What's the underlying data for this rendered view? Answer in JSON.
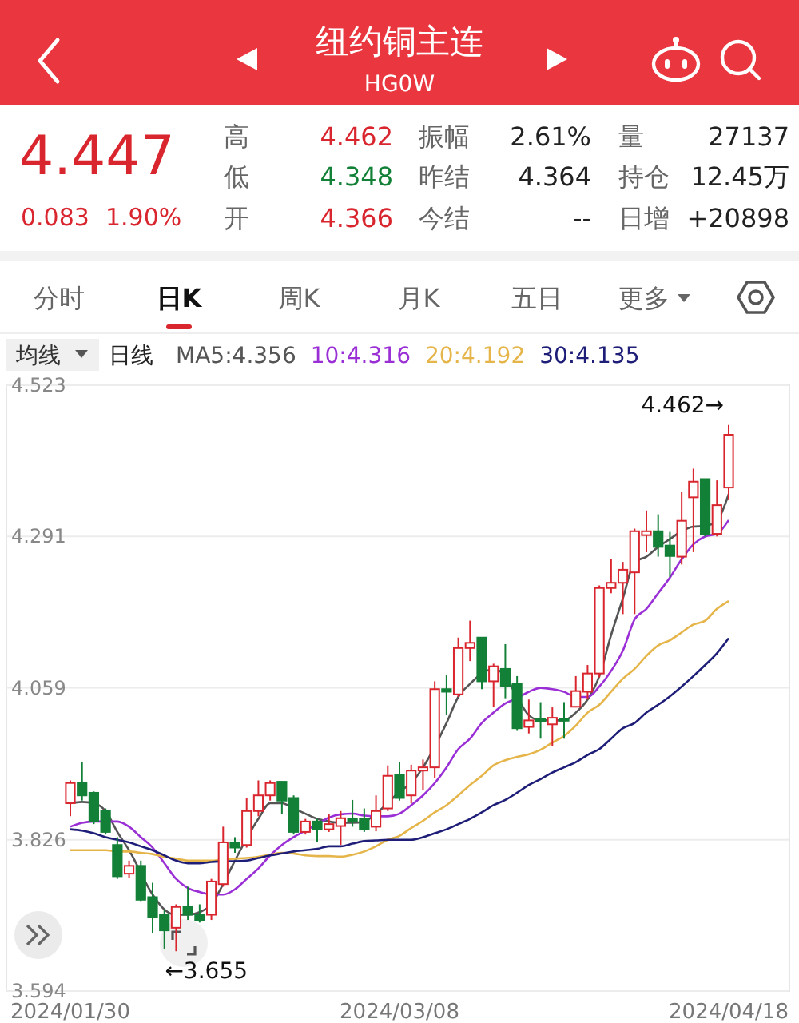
{
  "chart_data": {
    "type": "candlestick",
    "title": "纽约铜主连",
    "subtitle": "HG0W",
    "categories": [
      "2024/01/30",
      null,
      null,
      null,
      null,
      null,
      null,
      null,
      null,
      null,
      null,
      null,
      null,
      null,
      null,
      null,
      null,
      null,
      null,
      null,
      null,
      null,
      null,
      null,
      null,
      null,
      null,
      null,
      "2024/03/08",
      null,
      null,
      null,
      null,
      null,
      null,
      null,
      null,
      null,
      null,
      null,
      null,
      null,
      null,
      null,
      null,
      null,
      null,
      null,
      null,
      null,
      null,
      null,
      null,
      null,
      null,
      null,
      "2024/04/18"
    ],
    "ohlc": [
      [
        3.882,
        3.917,
        3.862,
        3.913
      ],
      [
        3.913,
        3.945,
        3.886,
        3.894
      ],
      [
        3.898,
        3.9,
        3.85,
        3.854
      ],
      [
        3.87,
        3.874,
        3.834,
        3.838
      ],
      [
        3.818,
        3.83,
        3.766,
        3.77
      ],
      [
        3.774,
        3.794,
        3.768,
        3.786
      ],
      [
        3.786,
        3.794,
        3.732,
        3.734
      ],
      [
        3.738,
        3.76,
        3.683,
        3.707
      ],
      [
        3.711,
        3.719,
        3.659,
        3.687
      ],
      [
        3.691,
        3.727,
        3.655,
        3.723
      ],
      [
        3.723,
        3.754,
        3.703,
        3.711
      ],
      [
        3.711,
        3.727,
        3.699,
        3.703
      ],
      [
        3.711,
        3.766,
        3.703,
        3.762
      ],
      [
        3.758,
        3.846,
        3.754,
        3.822
      ],
      [
        3.822,
        3.83,
        3.806,
        3.814
      ],
      [
        3.818,
        3.89,
        3.814,
        3.87
      ],
      [
        3.87,
        3.917,
        3.862,
        3.894
      ],
      [
        3.894,
        3.917,
        3.886,
        3.913
      ],
      [
        3.915,
        3.915,
        3.866,
        3.886
      ],
      [
        3.89,
        3.894,
        3.834,
        3.838
      ],
      [
        3.838,
        3.858,
        3.834,
        3.854
      ],
      [
        3.854,
        3.858,
        3.822,
        3.842
      ],
      [
        3.842,
        3.866,
        3.838,
        3.85
      ],
      [
        3.847,
        3.87,
        3.818,
        3.859
      ],
      [
        3.858,
        3.887,
        3.846,
        3.854
      ],
      [
        3.858,
        3.874,
        3.838,
        3.842
      ],
      [
        3.846,
        3.894,
        3.839,
        3.87
      ],
      [
        3.874,
        3.94,
        3.87,
        3.924
      ],
      [
        3.925,
        3.945,
        3.886,
        3.89
      ],
      [
        3.894,
        3.941,
        3.882,
        3.932
      ],
      [
        3.932,
        3.949,
        3.902,
        3.937
      ],
      [
        3.937,
        4.069,
        3.921,
        4.057
      ],
      [
        4.057,
        4.078,
        4.017,
        4.053
      ],
      [
        4.049,
        4.136,
        4.045,
        4.12
      ],
      [
        4.12,
        4.162,
        4.1,
        4.128
      ],
      [
        4.136,
        4.136,
        4.057,
        4.069
      ],
      [
        4.069,
        4.096,
        4.029,
        4.092
      ],
      [
        4.088,
        4.126,
        4.043,
        4.061
      ],
      [
        4.065,
        4.077,
        3.993,
        3.997
      ],
      [
        3.999,
        4.041,
        3.989,
        4.009
      ],
      [
        4.011,
        4.037,
        3.981,
        4.007
      ],
      [
        4.003,
        4.029,
        3.969,
        4.013
      ],
      [
        4.011,
        4.037,
        3.981,
        4.009
      ],
      [
        4.03,
        4.077,
        4.029,
        4.054
      ],
      [
        4.053,
        4.094,
        4.041,
        4.081
      ],
      [
        4.081,
        4.216,
        4.075,
        4.212
      ],
      [
        4.212,
        4.256,
        4.204,
        4.22
      ],
      [
        4.22,
        4.252,
        4.172,
        4.24
      ],
      [
        4.236,
        4.303,
        4.172,
        4.299
      ],
      [
        4.293,
        4.331,
        4.267,
        4.299
      ],
      [
        4.299,
        4.325,
        4.26,
        4.275
      ],
      [
        4.277,
        4.298,
        4.229,
        4.261
      ],
      [
        4.26,
        4.359,
        4.248,
        4.315
      ],
      [
        4.351,
        4.395,
        4.267,
        4.375
      ],
      [
        4.379,
        4.379,
        4.291,
        4.295
      ],
      [
        4.295,
        4.377,
        4.291,
        4.339
      ],
      [
        4.366,
        4.462,
        4.348,
        4.447
      ]
    ],
    "series": [
      {
        "type": "line",
        "name": "MA5:4.356",
        "color": "#555555",
        "values": [
          3.882,
          3.884,
          3.882,
          3.87,
          3.838,
          3.81,
          null,
          3.742,
          3.719,
          3.711,
          3.711,
          3.715,
          3.727,
          3.758,
          3.794,
          null,
          3.858,
          3.882,
          3.882,
          3.874,
          3.866,
          3.858,
          3.854,
          3.852,
          3.852,
          3.854,
          3.866,
          3.882,
          3.9,
          3.913,
          3.937,
          null,
          4.005,
          4.045,
          4.065,
          4.081,
          4.088,
          4.077,
          4.045,
          4.017,
          4.009,
          4.009,
          4.009,
          4.021,
          4.041,
          4.077,
          4.14,
          4.196,
          4.252,
          4.26,
          4.275,
          4.287,
          4.299,
          4.306,
          4.307,
          4.315,
          4.356
        ]
      },
      {
        "type": "line",
        "name": "10:4.316",
        "color": "#9a2fd6",
        "values": [
          3.846,
          3.852,
          3.854,
          3.854,
          3.854,
          3.846,
          3.83,
          3.814,
          3.79,
          3.766,
          3.752,
          3.746,
          3.742,
          3.742,
          3.75,
          3.766,
          3.782,
          3.802,
          3.818,
          3.83,
          3.84,
          3.85,
          3.86,
          3.865,
          3.866,
          3.863,
          3.862,
          3.862,
          3.866,
          3.879,
          3.894,
          3.913,
          3.937,
          3.965,
          3.981,
          4.005,
          4.021,
          4.035,
          4.043,
          4.053,
          4.059,
          4.057,
          4.053,
          4.045,
          4.045,
          4.061,
          4.085,
          4.116,
          4.164,
          4.18,
          4.204,
          4.228,
          4.256,
          4.279,
          4.291,
          4.295,
          4.316
        ]
      },
      {
        "type": "line",
        "name": "20:4.192",
        "color": "#e6b54a",
        "values": [
          3.81,
          3.81,
          3.81,
          3.81,
          3.808,
          3.808,
          3.806,
          3.804,
          3.8,
          3.797,
          3.794,
          3.794,
          3.794,
          3.796,
          3.797,
          3.798,
          3.8,
          3.803,
          3.806,
          3.805,
          3.802,
          3.801,
          3.801,
          3.8,
          3.803,
          3.808,
          3.816,
          3.826,
          3.832,
          3.844,
          3.855,
          3.868,
          3.879,
          3.894,
          3.91,
          3.924,
          3.94,
          3.948,
          3.953,
          3.957,
          3.964,
          3.975,
          3.985,
          4.001,
          4.021,
          4.033,
          4.053,
          4.073,
          4.088,
          4.108,
          4.124,
          4.132,
          4.144,
          4.156,
          4.162,
          4.18,
          4.192
        ]
      },
      {
        "type": "line",
        "name": "30:4.135",
        "color": "#1e1e78",
        "values": [
          3.842,
          3.84,
          3.836,
          3.83,
          3.826,
          3.822,
          3.816,
          3.81,
          3.802,
          3.794,
          3.79,
          3.79,
          3.792,
          3.793,
          3.793,
          3.794,
          3.798,
          3.802,
          3.805,
          3.808,
          3.81,
          3.812,
          3.816,
          3.816,
          3.82,
          3.824,
          3.825,
          3.826,
          3.826,
          3.826,
          3.83,
          3.836,
          3.842,
          3.85,
          3.858,
          3.868,
          3.879,
          3.887,
          3.898,
          3.91,
          3.919,
          3.929,
          3.937,
          3.945,
          3.956,
          3.965,
          3.981,
          3.997,
          4.005,
          4.021,
          4.033,
          4.046,
          4.061,
          4.077,
          4.094,
          4.112,
          4.135
        ]
      }
    ],
    "ylim": [
      3.594,
      4.523
    ],
    "yticks": [
      3.594,
      3.826,
      4.059,
      4.291,
      4.523
    ],
    "grid": "y",
    "legend": "top left",
    "annotations": [
      "4.447",
      "0.083",
      "1.90%",
      "高",
      "4.462",
      "低",
      "4.348",
      "开",
      "4.366",
      "振幅",
      "2.61%",
      "昨结",
      "4.364",
      "今结",
      "--",
      "量",
      "27137",
      "持仓",
      "12.45万",
      "日增",
      "+20898",
      "分时",
      "日K",
      "周K",
      "月K",
      "五日",
      "更多",
      "均线",
      "日线",
      "4.462→",
      "←3.655"
    ]
  }
}
